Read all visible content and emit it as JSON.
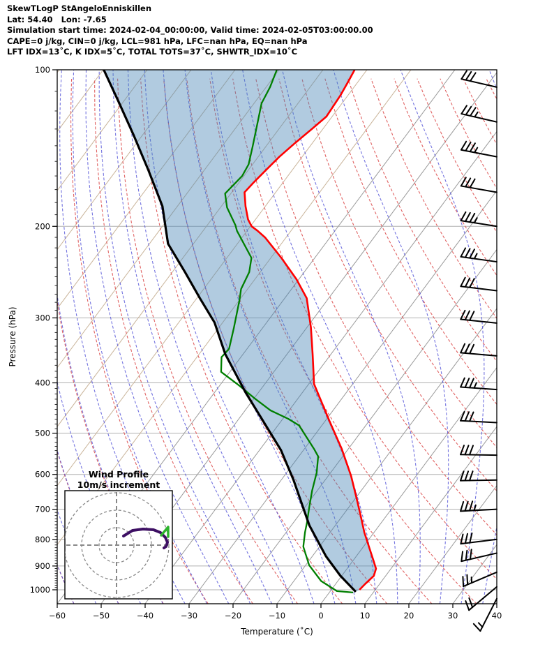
{
  "title_block": {
    "lines": [
      "SkewTLogP StAngeloEnniskillen",
      "Lat: 54.40   Lon: -7.65",
      "Simulation start time: 2024-02-04_00:00:00, Valid time: 2024-02-05T03:00:00.00",
      "CAPE=0 j/kg, CIN=0 j/kg, LCL=981 hPa, LFC=nan hPa, EQ=nan hPa",
      "LFT IDX=13˚C, K IDX=5˚C, TOTAL TOTS=37˚C, SHWTR_IDX=10˚C"
    ]
  },
  "axes": {
    "x": {
      "label": "Temperature (˚C)",
      "tick_values": [
        -60,
        -50,
        -40,
        -30,
        -20,
        -10,
        0,
        10,
        20,
        30,
        40
      ],
      "tick_labels": [
        "−60",
        "−50",
        "−40",
        "−30",
        "−20",
        "−10",
        "0",
        "10",
        "20",
        "30",
        "40"
      ]
    },
    "y": {
      "label": "Pressure (hPa)",
      "tick_values": [
        100,
        200,
        300,
        400,
        500,
        600,
        700,
        800,
        900,
        1000
      ],
      "tick_labels": [
        "100",
        "200",
        "300",
        "400",
        "500",
        "600",
        "700",
        "800",
        "900",
        "1000"
      ]
    }
  },
  "inset": {
    "title": "Wind Profile",
    "subtitle": "10m/s increment",
    "ring_interval_ms": 10,
    "rings_ms": [
      10,
      20,
      30
    ]
  },
  "colors": {
    "temperature": "#ff0000",
    "dewpoint": "#007f00",
    "parcel": "#000000",
    "shading": "rgba(70,130,180,0.42)",
    "isotherm": "#9a9a9a",
    "isotherm_cold": "#c9b49a",
    "dry_adiabat": "#e06262",
    "moist_adiabat": "rgba(80,80,215,0.8)",
    "gridline": "#b0b0b0",
    "barb": "#000000",
    "hodograph_trace": "#3d0f63",
    "hodograph_marker": "#2db32d",
    "inset_guides": "#888888"
  },
  "chart_data": {
    "type": "skewt",
    "title": "SkewTLogP StAngeloEnniskillen",
    "pressure_range_hPa": [
      100,
      1050
    ],
    "temperature_range_C": [
      -60,
      40
    ],
    "skew_isotherm_step_C": 10,
    "dry_adiabat_theta_C": {
      "min": -60,
      "max": 170,
      "step": 10
    },
    "moist_adiabat_thetaw_C": {
      "min": -60,
      "max": 40,
      "step": 5
    },
    "temperature_profile": [
      [
        1000,
        6.4
      ],
      [
        974,
        6.7
      ],
      [
        940,
        7.3
      ],
      [
        911,
        6.6
      ],
      [
        878,
        4.6
      ],
      [
        836,
        1.9
      ],
      [
        776,
        -2.2
      ],
      [
        723,
        -5.7
      ],
      [
        673,
        -9.3
      ],
      [
        604,
        -14.8
      ],
      [
        536,
        -21.5
      ],
      [
        473,
        -29.1
      ],
      [
        402,
        -38.8
      ],
      [
        353,
        -44.1
      ],
      [
        313,
        -49.1
      ],
      [
        275,
        -55.0
      ],
      [
        253,
        -60.5
      ],
      [
        230,
        -67.6
      ],
      [
        210,
        -74.8
      ],
      [
        204,
        -77.6
      ],
      [
        200,
        -79.7
      ],
      [
        194,
        -81.7
      ],
      [
        183,
        -84.5
      ],
      [
        172,
        -87.1
      ],
      [
        165,
        -86.7
      ],
      [
        156,
        -86.0
      ],
      [
        147,
        -85.2
      ],
      [
        138,
        -83.9
      ],
      [
        130,
        -82.5
      ],
      [
        123,
        -81.3
      ],
      [
        112,
        -81.7
      ],
      [
        105,
        -82.3
      ],
      [
        100,
        -82.8
      ]
    ],
    "dewpoint_profile": [
      [
        1012,
        5.4
      ],
      [
        1006,
        1.5
      ],
      [
        962,
        -3.8
      ],
      [
        897,
        -9.2
      ],
      [
        826,
        -13.7
      ],
      [
        776,
        -15.7
      ],
      [
        741,
        -17.0
      ],
      [
        694,
        -19.0
      ],
      [
        644,
        -21.2
      ],
      [
        595,
        -23.2
      ],
      [
        554,
        -25.6
      ],
      [
        536,
        -27.8
      ],
      [
        483,
        -35.2
      ],
      [
        469,
        -38.8
      ],
      [
        452,
        -44.2
      ],
      [
        428,
        -50.0
      ],
      [
        405,
        -55.5
      ],
      [
        381,
        -62.0
      ],
      [
        357,
        -64.4
      ],
      [
        344,
        -64.1
      ],
      [
        313,
        -66.6
      ],
      [
        277,
        -70.0
      ],
      [
        264,
        -71.5
      ],
      [
        245,
        -72.5
      ],
      [
        230,
        -74.4
      ],
      [
        204,
        -82.3
      ],
      [
        199,
        -83.6
      ],
      [
        184,
        -88.5
      ],
      [
        173,
        -91.3
      ],
      [
        160,
        -90.4
      ],
      [
        152,
        -90.9
      ],
      [
        140,
        -93.1
      ],
      [
        116,
        -98.3
      ],
      [
        108,
        -99.1
      ],
      [
        100,
        -100.5
      ]
    ],
    "parcel_profile": [
      [
        1009,
        5.9
      ],
      [
        940,
        -0.3
      ],
      [
        862,
        -6.9
      ],
      [
        752,
        -15.9
      ],
      [
        614,
        -27.3
      ],
      [
        539,
        -35.1
      ],
      [
        417,
        -53.0
      ],
      [
        352,
        -64.1
      ],
      [
        306,
        -71.9
      ],
      [
        275,
        -79.3
      ],
      [
        245,
        -87.1
      ],
      [
        216,
        -95.8
      ],
      [
        183,
        -103.4
      ],
      [
        156,
        -112.7
      ],
      [
        134,
        -121.8
      ],
      [
        115,
        -131.2
      ],
      [
        99,
        -140.5
      ]
    ],
    "wind_barbs": [
      {
        "p": 108,
        "speed_ms": 30,
        "dir_deg": 283
      },
      {
        "p": 126,
        "speed_ms": 35,
        "dir_deg": 283
      },
      {
        "p": 147,
        "speed_ms": 35,
        "dir_deg": 281
      },
      {
        "p": 172,
        "speed_ms": 30,
        "dir_deg": 280
      },
      {
        "p": 200,
        "speed_ms": 35,
        "dir_deg": 279
      },
      {
        "p": 234,
        "speed_ms": 35,
        "dir_deg": 278
      },
      {
        "p": 266,
        "speed_ms": 30,
        "dir_deg": 277
      },
      {
        "p": 307,
        "speed_ms": 30,
        "dir_deg": 276
      },
      {
        "p": 355,
        "speed_ms": 30,
        "dir_deg": 275
      },
      {
        "p": 412,
        "speed_ms": 35,
        "dir_deg": 274
      },
      {
        "p": 477,
        "speed_ms": 30,
        "dir_deg": 273
      },
      {
        "p": 551,
        "speed_ms": 30,
        "dir_deg": 271
      },
      {
        "p": 615,
        "speed_ms": 30,
        "dir_deg": 269
      },
      {
        "p": 700,
        "speed_ms": 35,
        "dir_deg": 267
      },
      {
        "p": 800,
        "speed_ms": 30,
        "dir_deg": 263
      },
      {
        "p": 850,
        "speed_ms": 30,
        "dir_deg": 257
      },
      {
        "p": 925,
        "speed_ms": 25,
        "dir_deg": 247
      },
      {
        "p": 987,
        "speed_ms": 20,
        "dir_deg": 230
      },
      {
        "p": 1040,
        "speed_ms": 13,
        "dir_deg": 207
      }
    ],
    "hodograph_trace_uv_ms": [
      [
        4.0,
        5.2
      ],
      [
        9.2,
        8.4
      ],
      [
        15.2,
        9.2
      ],
      [
        21.2,
        8.8
      ],
      [
        25.2,
        7.2
      ],
      [
        28.0,
        4.4
      ],
      [
        29.2,
        1.6
      ],
      [
        28.4,
        -0.8
      ],
      [
        27.2,
        -1.6
      ]
    ],
    "hodograph_marker_uv_ms": [
      28.4,
      7.6
    ]
  }
}
